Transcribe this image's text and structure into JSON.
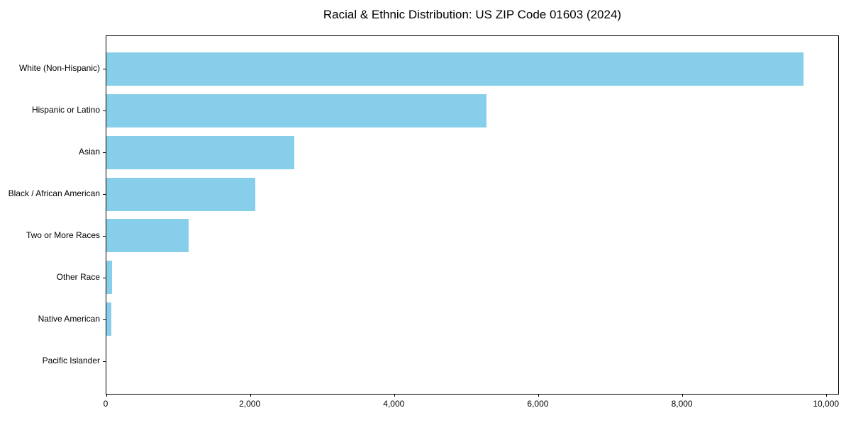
{
  "figure": {
    "background_color": "#ffffff",
    "axis_color": "#000000",
    "text_color": "#000000"
  },
  "chart_data": {
    "type": "bar",
    "orientation": "horizontal",
    "title": "Racial & Ethnic Distribution: US ZIP Code 01603 (2024)",
    "xlabel": "",
    "ylabel": "",
    "grid": false,
    "legend": null,
    "bar_color": "#87CEEB",
    "categories": [
      "White (Non-Hispanic)",
      "Hispanic or Latino",
      "Asian",
      "Black / African American",
      "Two or More Races",
      "Other Race",
      "Native American",
      "Pacific Islander"
    ],
    "values": [
      9680,
      5280,
      2610,
      2065,
      1140,
      80,
      70,
      0
    ],
    "xlim": [
      0,
      10160
    ],
    "xtick_values": [
      0,
      2000,
      4000,
      6000,
      8000,
      10000
    ],
    "xtick_labels": [
      "0",
      "2,000",
      "4,000",
      "6,000",
      "8,000",
      "10,000"
    ]
  }
}
